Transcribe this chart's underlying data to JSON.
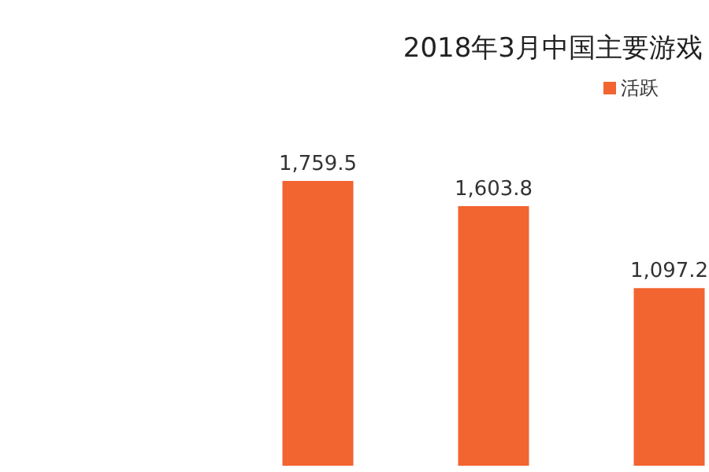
{
  "chart_data": {
    "type": "bar",
    "title": "2018年3月中国主要游戏",
    "categories": [
      null,
      null,
      null
    ],
    "series": [
      {
        "name": "活跃",
        "color": "#f26430",
        "values": [
          1759.5,
          1603.8,
          1097.2
        ],
        "value_labels": [
          "1,759.5",
          "1,603.8",
          "1,097.2"
        ]
      }
    ],
    "legend": "top right"
  }
}
